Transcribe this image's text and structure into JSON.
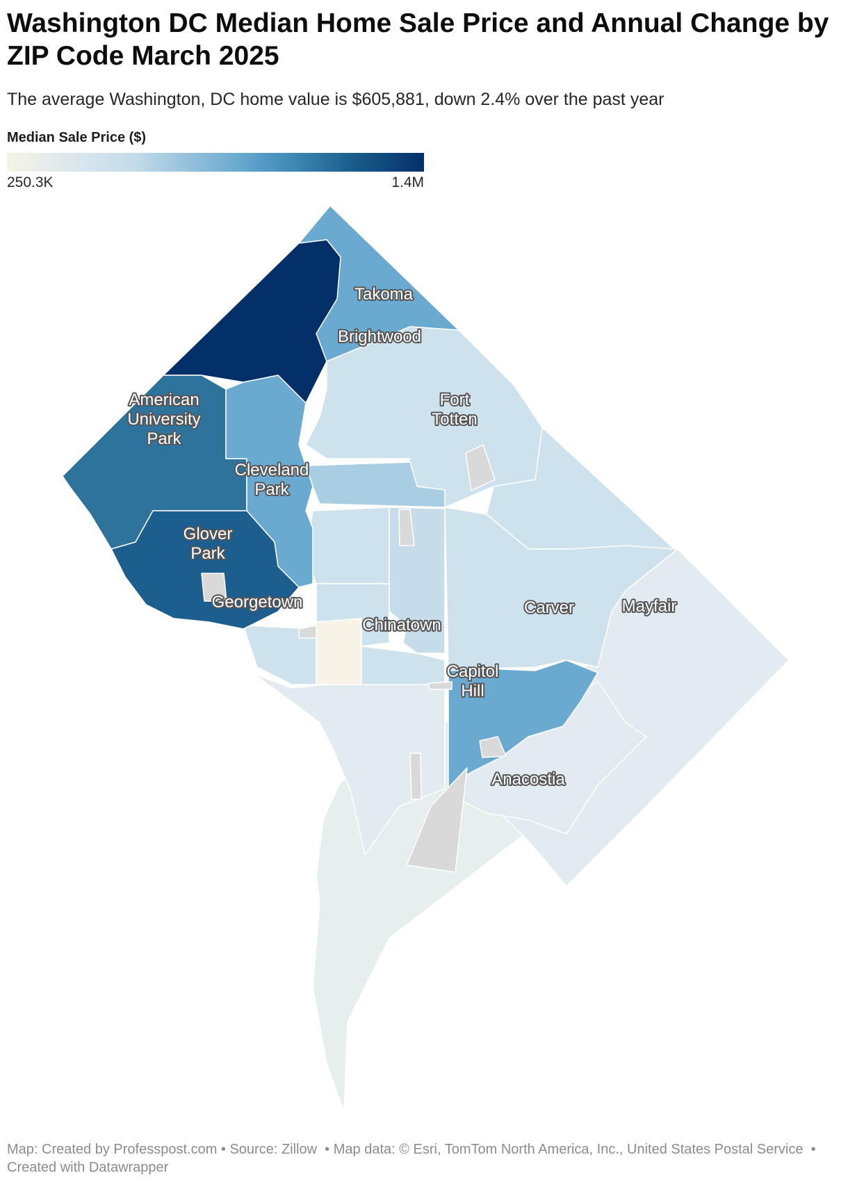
{
  "header": {
    "title": "Washington DC Median Home Sale Price and Annual Change by ZIP Code March 2025",
    "subtitle": "The average Washington, DC home value is $605,881, down 2.4% over the past year"
  },
  "legend": {
    "title": "Median Sale Price ($)",
    "min_label": "250.3K",
    "max_label": "1.4M",
    "colors": [
      "#f7f3e6",
      "#d4e4ee",
      "#c6dcea",
      "#6baad0",
      "#3f8ab7",
      "#1c5f8e",
      "#033069"
    ]
  },
  "map": {
    "colors": {
      "darkest": "#033069",
      "dark": "#1c5f8e",
      "medium_dark": "#2e739c",
      "medium": "#6baad0",
      "light_medium": "#a9cde3",
      "light": "#cee2ee",
      "lighter": "#c6dcea",
      "pale": "#e2ebef",
      "palest": "#e6eeee",
      "lowest": "#f7f3e6",
      "no_data": "#d9d9d9"
    },
    "labels": {
      "takoma": "Takoma",
      "brightwood": "Brightwood",
      "american_university_park": [
        "American",
        "University",
        "Park"
      ],
      "fort_totten": [
        "Fort",
        "Totten"
      ],
      "cleveland_park": [
        "Cleveland",
        "Park"
      ],
      "glover_park": [
        "Glover",
        "Park"
      ],
      "georgetown": "Georgetown",
      "carver": "Carver",
      "mayfair": "Mayfair",
      "chinatown": "Chinatown",
      "capitol_hill": [
        "Capitol",
        "Hill"
      ],
      "anacostia": "Anacostia"
    }
  },
  "footer": {
    "credit": "Map: Created by Professpost.com • Source: Zillow  • Map data: © Esri, TomTom North America, Inc., United States Postal Service  • Created with Datawrapper"
  }
}
